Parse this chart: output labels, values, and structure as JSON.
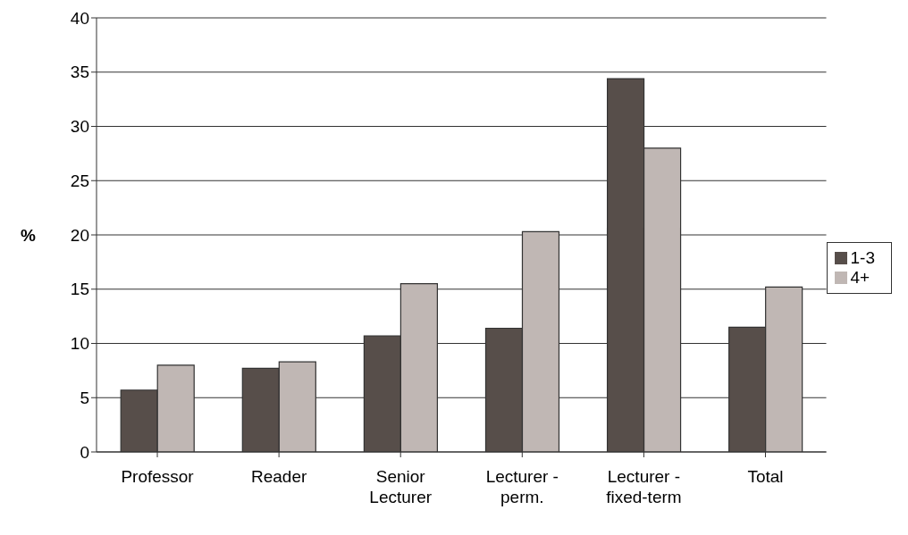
{
  "chart_data": {
    "type": "bar",
    "ylabel": "%",
    "categories": [
      "Professor",
      "Reader",
      "Senior Lecturer",
      "Lecturer - perm.",
      "Lecturer - fixed-term",
      "Total"
    ],
    "series": [
      {
        "name": "1-3",
        "color": "#574e4a",
        "values": [
          5.7,
          7.7,
          10.7,
          11.4,
          34.4,
          11.5
        ]
      },
      {
        "name": "4+",
        "color": "#c0b7b4",
        "values": [
          8.0,
          8.3,
          15.5,
          20.3,
          28.0,
          15.2
        ]
      }
    ],
    "ylim": [
      0,
      40
    ],
    "yticks": [
      0,
      5,
      10,
      15,
      20,
      25,
      30,
      35,
      40
    ],
    "grid": "y",
    "legend": "right"
  }
}
